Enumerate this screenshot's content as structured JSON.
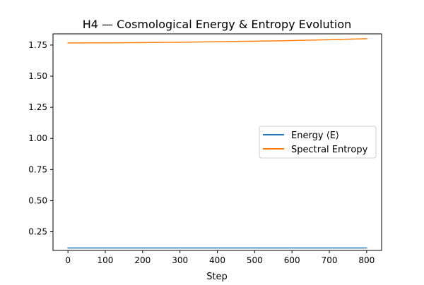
{
  "chart_data": {
    "type": "line",
    "title": "H4 — Cosmological Energy & Entropy Evolution",
    "xlabel": "Step",
    "ylabel": "",
    "xlim": [
      -40,
      840
    ],
    "ylim": [
      0.1,
      1.84
    ],
    "x_ticks": [
      0,
      100,
      200,
      300,
      400,
      500,
      600,
      700,
      800
    ],
    "y_ticks": [
      0.25,
      0.5,
      0.75,
      1.0,
      1.25,
      1.5,
      1.75
    ],
    "x_tick_labels": [
      "0",
      "100",
      "200",
      "300",
      "400",
      "500",
      "600",
      "700",
      "800"
    ],
    "y_tick_labels": [
      "0.25",
      "0.50",
      "0.75",
      "1.00",
      "1.25",
      "1.50",
      "1.75"
    ],
    "grid": false,
    "legend_position": "center-right",
    "series": [
      {
        "name": "Energy ⟨E⟩",
        "color": "#1f77b4",
        "x": [
          0,
          100,
          200,
          300,
          400,
          500,
          600,
          700,
          800
        ],
        "y": [
          0.12,
          0.12,
          0.12,
          0.12,
          0.12,
          0.12,
          0.12,
          0.12,
          0.12
        ]
      },
      {
        "name": "Spectral Entropy",
        "color": "#ff7f0e",
        "x": [
          0,
          100,
          200,
          300,
          400,
          500,
          600,
          700,
          800
        ],
        "y": [
          1.767,
          1.768,
          1.77,
          1.773,
          1.777,
          1.781,
          1.786,
          1.793,
          1.801
        ]
      }
    ]
  }
}
